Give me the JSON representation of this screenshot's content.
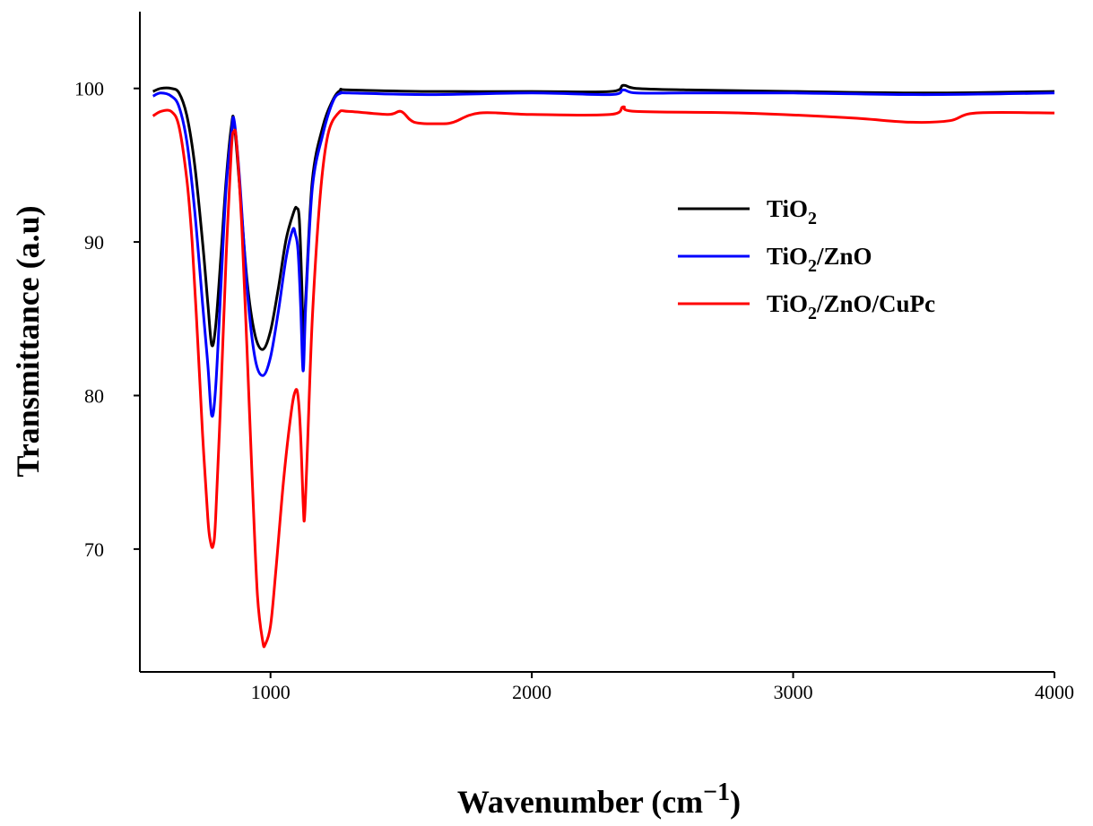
{
  "chart_data": {
    "type": "line",
    "xlabel": "Wavenumber (cm−1)",
    "xlabel_parts": {
      "base": "Wavenumber (cm",
      "sup": "−1",
      "close": ")"
    },
    "ylabel": "Transmittance (a.u)",
    "xlim": [
      500,
      4000
    ],
    "ylim": [
      62,
      105
    ],
    "x_ticks": [
      1000,
      2000,
      3000,
      4000
    ],
    "x_tick_labels": [
      "1000",
      "2000",
      "3000",
      "4000"
    ],
    "y_ticks": [
      70,
      80,
      90,
      100
    ],
    "y_tick_labels": [
      "70",
      "80",
      "90",
      "100"
    ],
    "grid": false,
    "legend_position": "right",
    "series": [
      {
        "name": "TiO2",
        "label": {
          "base": "TiO",
          "sub": "2",
          "rest": ""
        },
        "color": "#000000",
        "x": [
          550,
          580,
          620,
          650,
          680,
          710,
          740,
          760,
          775,
          790,
          810,
          830,
          850,
          860,
          880,
          910,
          940,
          970,
          1000,
          1030,
          1060,
          1090,
          1100,
          1110,
          1120,
          1125,
          1135,
          1160,
          1200,
          1240,
          1270,
          1300,
          1600,
          2000,
          2300,
          2350,
          2400,
          2600,
          3000,
          3500,
          4000
        ],
        "y": [
          99.8,
          100.0,
          100.0,
          99.7,
          98.2,
          95.0,
          90.0,
          86.0,
          83.3,
          84.5,
          89.0,
          94.0,
          97.5,
          97.9,
          94.0,
          87.5,
          84.0,
          83.0,
          84.2,
          87.0,
          90.2,
          92.0,
          92.2,
          91.5,
          87.0,
          83.5,
          86.5,
          94.0,
          97.5,
          99.3,
          99.9,
          99.9,
          99.8,
          99.8,
          99.8,
          100.2,
          100.0,
          99.9,
          99.8,
          99.7,
          99.8
        ]
      },
      {
        "name": "TiO2/ZnO",
        "label": {
          "base": "TiO",
          "sub": "2",
          "rest": "/ZnO"
        },
        "color": "#0000ff",
        "x": [
          550,
          580,
          620,
          650,
          680,
          710,
          740,
          760,
          775,
          790,
          810,
          830,
          850,
          860,
          880,
          910,
          940,
          970,
          1000,
          1030,
          1060,
          1085,
          1095,
          1105,
          1115,
          1125,
          1135,
          1160,
          1200,
          1240,
          1270,
          1300,
          1600,
          2000,
          2300,
          2350,
          2400,
          2600,
          3000,
          3500,
          4000
        ],
        "y": [
          99.5,
          99.7,
          99.5,
          98.8,
          96.5,
          92.0,
          86.0,
          82.0,
          78.7,
          80.5,
          87.0,
          93.5,
          97.0,
          98.0,
          94.5,
          87.0,
          82.5,
          81.3,
          82.5,
          85.5,
          89.0,
          90.8,
          90.5,
          89.5,
          86.0,
          81.6,
          86.0,
          93.5,
          97.0,
          99.2,
          99.7,
          99.7,
          99.6,
          99.7,
          99.6,
          99.9,
          99.7,
          99.7,
          99.7,
          99.6,
          99.7
        ]
      },
      {
        "name": "TiO2/ZnO/CuPc",
        "label": {
          "base": "TiO",
          "sub": "2",
          "rest": "/ZnO/CuPc"
        },
        "color": "#ff0000",
        "x": [
          550,
          580,
          620,
          650,
          680,
          700,
          720,
          740,
          760,
          770,
          780,
          790,
          810,
          830,
          850,
          860,
          870,
          890,
          910,
          930,
          950,
          970,
          980,
          1000,
          1020,
          1050,
          1080,
          1095,
          1105,
          1115,
          1125,
          1130,
          1140,
          1160,
          1190,
          1220,
          1260,
          1300,
          1450,
          1500,
          1550,
          1650,
          1700,
          1800,
          2000,
          2300,
          2350,
          2400,
          2800,
          3200,
          3450,
          3600,
          3700,
          4000
        ],
        "y": [
          98.2,
          98.5,
          98.5,
          97.5,
          94.0,
          90.0,
          84.0,
          77.5,
          72.0,
          70.5,
          70.2,
          72.0,
          80.0,
          89.0,
          96.0,
          97.2,
          96.5,
          91.0,
          83.0,
          74.5,
          67.0,
          64.0,
          63.8,
          65.0,
          68.5,
          74.5,
          79.0,
          80.3,
          80.0,
          77.5,
          73.0,
          72.0,
          76.0,
          85.0,
          93.0,
          97.0,
          98.4,
          98.5,
          98.3,
          98.5,
          97.8,
          97.7,
          97.8,
          98.4,
          98.3,
          98.3,
          98.8,
          98.5,
          98.4,
          98.1,
          97.8,
          97.9,
          98.4,
          98.4
        ]
      }
    ]
  }
}
